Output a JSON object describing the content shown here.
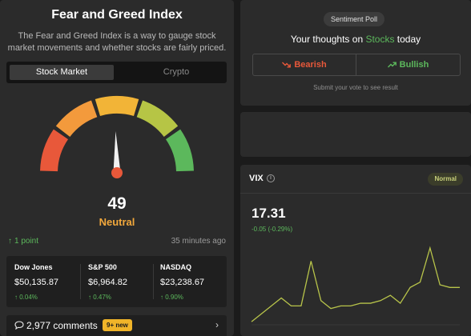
{
  "fear_greed": {
    "title": "Fear and Greed Index",
    "description": "The Fear and Greed Index is a way to gauge stock market movements and whether stocks are fairly priced.",
    "tabs": [
      {
        "label": "Stock Market",
        "active": true
      },
      {
        "label": "Crypto",
        "active": false
      }
    ],
    "gauge": {
      "value": 49,
      "min": 0,
      "max": 100,
      "segment_colors": [
        "#e8583a",
        "#f39a3c",
        "#f2b437",
        "#b6c545",
        "#5cb85c"
      ]
    },
    "score": "49",
    "rating": "Neutral",
    "change": "1 point",
    "updated": "35 minutes ago"
  },
  "indices": [
    {
      "name": "Dow Jones",
      "value": "$50,135.87",
      "change": "0.04%"
    },
    {
      "name": "S&P 500",
      "value": "$6,964.82",
      "change": "0.47%"
    },
    {
      "name": "NASDAQ",
      "value": "$23,238.67",
      "change": "0.90%"
    }
  ],
  "comments": {
    "label": "2,977 comments",
    "badge": "9+ new"
  },
  "poll": {
    "tag": "Sentiment Poll",
    "question_prefix": "Your thoughts on ",
    "question_highlight": "Stocks",
    "question_suffix": " today",
    "bearish": "Bearish",
    "bullish": "Bullish",
    "hint": "Submit your vote to see result"
  },
  "vix": {
    "title": "VIX",
    "badge": "Normal",
    "value": "17.31",
    "change": "-0.05 (-0.29%)"
  },
  "chart_data": {
    "type": "line",
    "title": "",
    "xlabel": "",
    "ylabel": "",
    "series": [
      {
        "values": [
          15.9,
          16.2,
          16.5,
          16.8,
          16.5,
          16.5,
          18.2,
          16.7,
          16.4,
          16.5,
          16.5,
          16.6,
          16.6,
          16.7,
          16.9,
          16.6,
          17.2,
          17.4,
          18.7,
          17.3,
          17.2,
          17.2
        ]
      }
    ],
    "ylim": [
      15.6,
      19.0
    ],
    "line_color": "#b8c44a",
    "grid": false,
    "legend": false
  },
  "colors": {
    "positive": "#5cb85c",
    "negative": "#e8583a",
    "neutral_rating": "#f2a83c",
    "badge_new": "#f0b429"
  }
}
